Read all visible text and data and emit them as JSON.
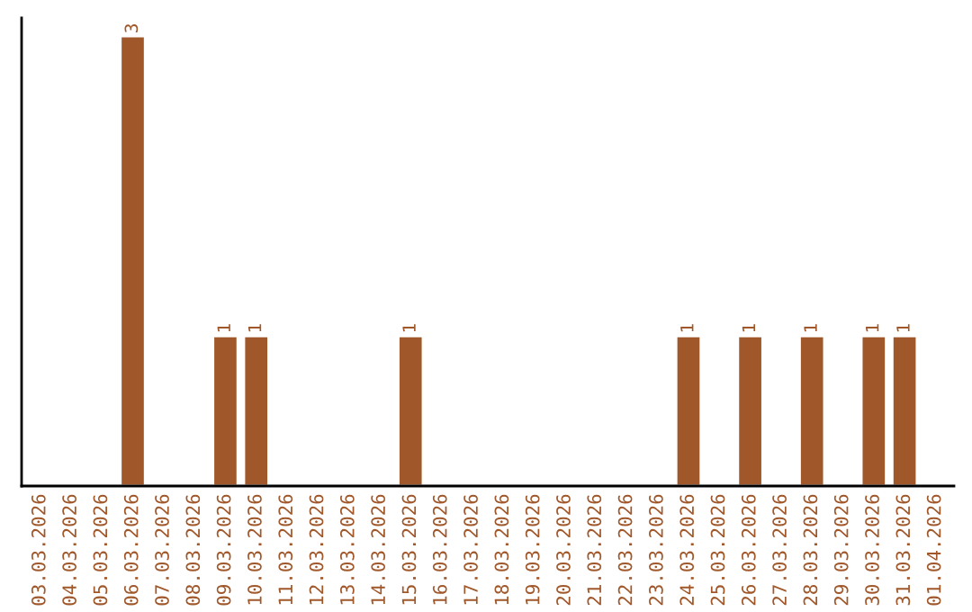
{
  "chart_data": {
    "type": "bar",
    "categories": [
      "03.03.2026",
      "04.03.2026",
      "05.03.2026",
      "06.03.2026",
      "07.03.2026",
      "08.03.2026",
      "09.03.2026",
      "10.03.2026",
      "11.03.2026",
      "12.03.2026",
      "13.03.2026",
      "14.03.2026",
      "15.03.2026",
      "16.03.2026",
      "17.03.2026",
      "18.03.2026",
      "19.03.2026",
      "20.03.2026",
      "21.03.2026",
      "22.03.2026",
      "23.03.2026",
      "24.03.2026",
      "25.03.2026",
      "26.03.2026",
      "27.03.2026",
      "28.03.2026",
      "29.03.2026",
      "30.03.2026",
      "31.03.2026",
      "01.04.2026"
    ],
    "values": [
      null,
      null,
      null,
      3,
      null,
      null,
      1,
      1,
      null,
      null,
      null,
      null,
      1,
      null,
      null,
      null,
      null,
      null,
      null,
      null,
      null,
      1,
      null,
      1,
      null,
      1,
      null,
      1,
      1,
      null
    ],
    "value_labels": [
      null,
      null,
      null,
      "3",
      null,
      null,
      "1",
      "1",
      null,
      null,
      null,
      null,
      "1",
      null,
      null,
      null,
      null,
      null,
      null,
      null,
      null,
      "1",
      null,
      "1",
      null,
      "1",
      null,
      "1",
      "1",
      null
    ],
    "color": "#a0572a",
    "ylim": [
      0,
      3.12
    ],
    "tick_labels": "x",
    "grid": false
  }
}
